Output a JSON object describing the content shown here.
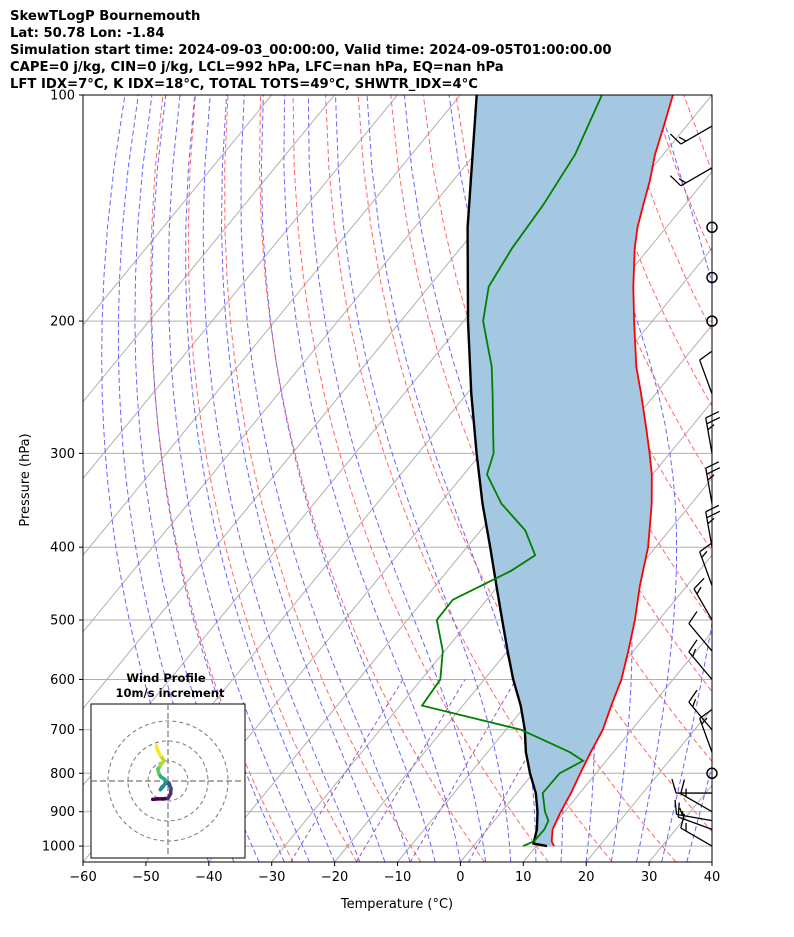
{
  "header": {
    "title": "SkewTLogP Bournemouth",
    "location": "Lat: 50.78   Lon: -1.84",
    "times": "Simulation start time: 2024-09-03_00:00:00, Valid time: 2024-09-05T01:00:00.00",
    "indices1": "CAPE=0 j/kg, CIN=0 j/kg, LCL=992 hPa, LFC=nan hPa, EQ=nan hPa",
    "indices2": "LFT IDX=7°C, K IDX=18°C, TOTAL TOTS=49°C, SHWTR_IDX=4°C"
  },
  "colors": {
    "temperature": "#ff0000",
    "dewpoint": "#008000",
    "parcel": "#000000",
    "shade": "#a4c8e1",
    "dry_adiabat": "#ff6666",
    "moist_adiabat": "#6666ff",
    "mixing_ratio": "#9955cc",
    "isotherm": "#b0b0b0"
  },
  "chart_data": {
    "type": "skewt-logp",
    "xlabel": "Temperature (°C)",
    "ylabel": "Pressure (hPa)",
    "xlim": [
      -60,
      40
    ],
    "ylim": [
      1050,
      100
    ],
    "x_ticks": [
      "−60",
      "−50",
      "−40",
      "−30",
      "−20",
      "−10",
      "0",
      "10",
      "20",
      "30",
      "40"
    ],
    "x_tick_values": [
      -60,
      -50,
      -40,
      -30,
      -20,
      -10,
      0,
      10,
      20,
      30,
      40
    ],
    "y_ticks": [
      "100",
      "200",
      "300",
      "400",
      "500",
      "600",
      "700",
      "800",
      "900",
      "1000"
    ],
    "y_tick_values": [
      100,
      200,
      300,
      400,
      500,
      600,
      700,
      800,
      900,
      1000
    ],
    "temperature_profile": [
      {
        "p": 1000,
        "t": 12.8
      },
      {
        "p": 985,
        "t": 11.8
      },
      {
        "p": 950,
        "t": 10.4
      },
      {
        "p": 925,
        "t": 9.9
      },
      {
        "p": 900,
        "t": 9.4
      },
      {
        "p": 850,
        "t": 8.6
      },
      {
        "p": 800,
        "t": 7.5
      },
      {
        "p": 750,
        "t": 6.4
      },
      {
        "p": 700,
        "t": 5.4
      },
      {
        "p": 650,
        "t": 3.6
      },
      {
        "p": 600,
        "t": 1.8
      },
      {
        "p": 550,
        "t": -0.8
      },
      {
        "p": 500,
        "t": -3.8
      },
      {
        "p": 450,
        "t": -7.5
      },
      {
        "p": 400,
        "t": -11.2
      },
      {
        "p": 350,
        "t": -16.3
      },
      {
        "p": 320,
        "t": -20.1
      },
      {
        "p": 300,
        "t": -23.2
      },
      {
        "p": 280,
        "t": -26.6
      },
      {
        "p": 250,
        "t": -32.3
      },
      {
        "p": 230,
        "t": -36.6
      },
      {
        "p": 200,
        "t": -42.9
      },
      {
        "p": 180,
        "t": -47.5
      },
      {
        "p": 160,
        "t": -52.3
      },
      {
        "p": 150,
        "t": -54.6
      },
      {
        "p": 140,
        "t": -56.6
      },
      {
        "p": 130,
        "t": -58.7
      },
      {
        "p": 120,
        "t": -61.3
      },
      {
        "p": 110,
        "t": -63.6
      },
      {
        "p": 100,
        "t": -66.2
      }
    ],
    "dewpoint_profile": [
      {
        "p": 1000,
        "t": 7.9
      },
      {
        "p": 985,
        "t": 9.0
      },
      {
        "p": 950,
        "t": 9.1
      },
      {
        "p": 925,
        "t": 8.6
      },
      {
        "p": 900,
        "t": 6.9
      },
      {
        "p": 850,
        "t": 4.1
      },
      {
        "p": 800,
        "t": 4.2
      },
      {
        "p": 770,
        "t": 6.3
      },
      {
        "p": 750,
        "t": 3.1
      },
      {
        "p": 700,
        "t": -7.6
      },
      {
        "p": 650,
        "t": -26.5
      },
      {
        "p": 600,
        "t": -27.0
      },
      {
        "p": 550,
        "t": -30.3
      },
      {
        "p": 500,
        "t": -35.3
      },
      {
        "p": 470,
        "t": -35.4
      },
      {
        "p": 430,
        "t": -29.9
      },
      {
        "p": 410,
        "t": -28.1
      },
      {
        "p": 380,
        "t": -32.9
      },
      {
        "p": 350,
        "t": -40.2
      },
      {
        "p": 320,
        "t": -46.3
      },
      {
        "p": 300,
        "t": -48.0
      },
      {
        "p": 280,
        "t": -51.0
      },
      {
        "p": 250,
        "t": -55.9
      },
      {
        "p": 230,
        "t": -59.6
      },
      {
        "p": 200,
        "t": -66.9
      },
      {
        "p": 180,
        "t": -70.5
      },
      {
        "p": 160,
        "t": -71.8
      },
      {
        "p": 140,
        "t": -72.5
      },
      {
        "p": 120,
        "t": -74.0
      },
      {
        "p": 100,
        "t": -77.5
      }
    ],
    "parcel_profile": [
      {
        "p": 1000,
        "t": 11.7
      },
      {
        "p": 992,
        "t": 9.2
      },
      {
        "p": 950,
        "t": 7.9
      },
      {
        "p": 900,
        "t": 5.7
      },
      {
        "p": 850,
        "t": 3.0
      },
      {
        "p": 800,
        "t": -0.5
      },
      {
        "p": 750,
        "t": -3.9
      },
      {
        "p": 700,
        "t": -7.0
      },
      {
        "p": 650,
        "t": -10.8
      },
      {
        "p": 600,
        "t": -15.4
      },
      {
        "p": 550,
        "t": -20.0
      },
      {
        "p": 500,
        "t": -24.9
      },
      {
        "p": 450,
        "t": -30.3
      },
      {
        "p": 400,
        "t": -36.3
      },
      {
        "p": 350,
        "t": -43.2
      },
      {
        "p": 300,
        "t": -50.7
      },
      {
        "p": 250,
        "t": -59.3
      },
      {
        "p": 200,
        "t": -69.3
      },
      {
        "p": 150,
        "t": -81.6
      },
      {
        "p": 100,
        "t": -97.4
      }
    ],
    "wind_barbs": [
      {
        "p": 1000,
        "speed_kt": 15,
        "dir": 300
      },
      {
        "p": 950,
        "speed_kt": 15,
        "dir": 290
      },
      {
        "p": 925,
        "speed_kt": 15,
        "dir": 280
      },
      {
        "p": 900,
        "speed_kt": 15,
        "dir": 300
      },
      {
        "p": 850,
        "speed_kt": 10,
        "dir": 270
      },
      {
        "p": 800,
        "speed_kt": 0,
        "dir": 0
      },
      {
        "p": 750,
        "speed_kt": 15,
        "dir": 340
      },
      {
        "p": 700,
        "speed_kt": 15,
        "dir": 320
      },
      {
        "p": 600,
        "speed_kt": 15,
        "dir": 320
      },
      {
        "p": 550,
        "speed_kt": 10,
        "dir": 320
      },
      {
        "p": 500,
        "speed_kt": 15,
        "dir": 330
      },
      {
        "p": 450,
        "speed_kt": 15,
        "dir": 340
      },
      {
        "p": 400,
        "speed_kt": 25,
        "dir": 350
      },
      {
        "p": 350,
        "speed_kt": 25,
        "dir": 350
      },
      {
        "p": 300,
        "speed_kt": 25,
        "dir": 350
      },
      {
        "p": 250,
        "speed_kt": 10,
        "dir": 340
      },
      {
        "p": 200,
        "speed_kt": 0,
        "dir": 0
      },
      {
        "p": 175,
        "speed_kt": 0,
        "dir": 0
      },
      {
        "p": 150,
        "speed_kt": 0,
        "dir": 0
      },
      {
        "p": 125,
        "speed_kt": 15,
        "dir": 240
      },
      {
        "p": 110,
        "speed_kt": 15,
        "dir": 240
      }
    ],
    "hodograph": {
      "title": "Wind Profile",
      "subtitle": "10m/s increment",
      "points": [
        {
          "u": -3.0,
          "v": -3.6
        },
        {
          "u": -2.0,
          "v": -3.5
        },
        {
          "u": -1.0,
          "v": -3.5
        },
        {
          "u": 0.0,
          "v": -3.4
        },
        {
          "u": 0.5,
          "v": -2.5
        },
        {
          "u": 0.6,
          "v": -1.5
        },
        {
          "u": 0.2,
          "v": -0.4
        },
        {
          "u": -0.5,
          "v": -0.5
        },
        {
          "u": -1.2,
          "v": -1.2
        },
        {
          "u": -1.5,
          "v": -1.7
        },
        {
          "u": -1.0,
          "v": -1.2
        },
        {
          "u": -0.4,
          "v": -0.2
        },
        {
          "u": -0.6,
          "v": 0.3
        },
        {
          "u": -1.4,
          "v": 0.8
        },
        {
          "u": -1.8,
          "v": 1.5
        },
        {
          "u": -2.0,
          "v": 2.3
        },
        {
          "u": -1.5,
          "v": 3.0
        },
        {
          "u": -0.8,
          "v": 4.0
        },
        {
          "u": -1.5,
          "v": 5.0
        },
        {
          "u": -2.0,
          "v": 6.0
        },
        {
          "u": -2.3,
          "v": 6.9
        }
      ]
    }
  }
}
